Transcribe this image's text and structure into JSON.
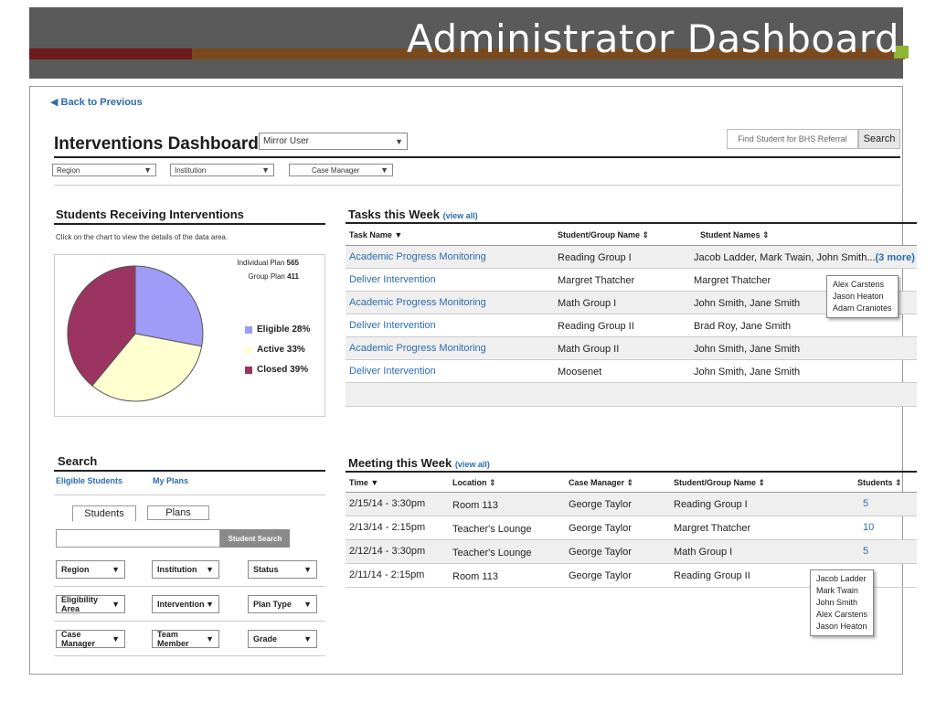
{
  "slide": {
    "title": "Administrator Dashboard"
  },
  "nav": {
    "back": "◀ Back  to Previous"
  },
  "header": {
    "title": "Interventions Dashboard",
    "mirror_user": "Mirror User",
    "find_placeholder": "Find Student for BHS Referral",
    "search_label": "Search"
  },
  "filters": {
    "region": "Region",
    "institution": "Institution",
    "case_manager": "Case Manager"
  },
  "students_panel": {
    "title": "Students Receiving Interventions",
    "hint": "Click on the chart to view the details of the data area.",
    "individual_label": "Individual Plan",
    "individual_value": "565",
    "group_label": "Group Plan",
    "group_value": "411",
    "legend": [
      {
        "label": "Eligible 28%",
        "color": "#9f9bf7"
      },
      {
        "label": "Active 33%",
        "color": "#ffffd0"
      },
      {
        "label": "Closed 39%",
        "color": "#9c3462"
      }
    ]
  },
  "chart_data": {
    "type": "pie",
    "categories": [
      "Eligible",
      "Active",
      "Closed"
    ],
    "values": [
      28,
      33,
      39
    ],
    "colors": [
      "#9f9bf7",
      "#ffffd0",
      "#9c3462"
    ]
  },
  "tasks": {
    "title": "Tasks this Week",
    "view_all": "(view all)",
    "headers": [
      "Task Name ▼",
      "Student/Group Name ⇕",
      "Student Names ⇕"
    ],
    "rows": [
      {
        "task": "Academic Progress Monitoring",
        "group": "Reading Group I",
        "names": "Jacob Ladder, Mark Twain, John Smith...",
        "more": "(3 more)"
      },
      {
        "task": "Deliver Intervention",
        "group": "Margret Thatcher",
        "names": "Margret Thatcher",
        "more": ""
      },
      {
        "task": "Academic Progress Monitoring",
        "group": "Math Group I",
        "names": "John Smith, Jane Smith",
        "more": ""
      },
      {
        "task": "Deliver Intervention",
        "group": "Reading Group II",
        "names": "Brad Roy, Jane Smith",
        "more": ""
      },
      {
        "task": "Academic Progress Monitoring",
        "group": "Math Group II",
        "names": "John Smith, Jane Smith",
        "more": ""
      },
      {
        "task": "Deliver Intervention",
        "group": "Moosenet",
        "names": "John Smith, Jane Smith",
        "more": ""
      }
    ],
    "popup": [
      "Alex Carstens",
      "Jason Heaton",
      "Adam Craniotes"
    ]
  },
  "search": {
    "title": "Search",
    "links": [
      "Eligible Students",
      "My Plans"
    ],
    "tabs": [
      "Students",
      "Plans"
    ],
    "button": "Student Search",
    "selects": [
      [
        "Region",
        "Institution",
        "Status"
      ],
      [
        "Eligibility Area",
        "Intervention",
        "Plan Type"
      ],
      [
        "Case Manager",
        "Team Member",
        "Grade"
      ]
    ]
  },
  "meetings": {
    "title": "Meeting this Week",
    "view_all": "(view all)",
    "headers": [
      "Time ▼",
      "Location ⇕",
      "Case Manager ⇕",
      "Student/Group Name ⇕",
      "Students ⇕"
    ],
    "rows": [
      {
        "time": "2/15/14 - 3:30pm",
        "location": "Room 113",
        "manager": "George Taylor",
        "group": "Reading Group I",
        "students": "5"
      },
      {
        "time": "2/13/14 - 2:15pm",
        "location": "Teacher's Lounge",
        "manager": "George Taylor",
        "group": "Margret Thatcher",
        "students": "10"
      },
      {
        "time": "2/12/14 - 3:30pm",
        "location": "Teacher's Lounge",
        "manager": "George Taylor",
        "group": "Math Group I",
        "students": "5"
      },
      {
        "time": "2/11/14 - 2:15pm",
        "location": "Room 113",
        "manager": "George Taylor",
        "group": "Reading Group II",
        "students": ""
      }
    ],
    "popup": [
      "Jacob Ladder",
      "Mark Twain",
      "John Smith",
      "Alex Carstens",
      "Jason Heaton"
    ]
  }
}
